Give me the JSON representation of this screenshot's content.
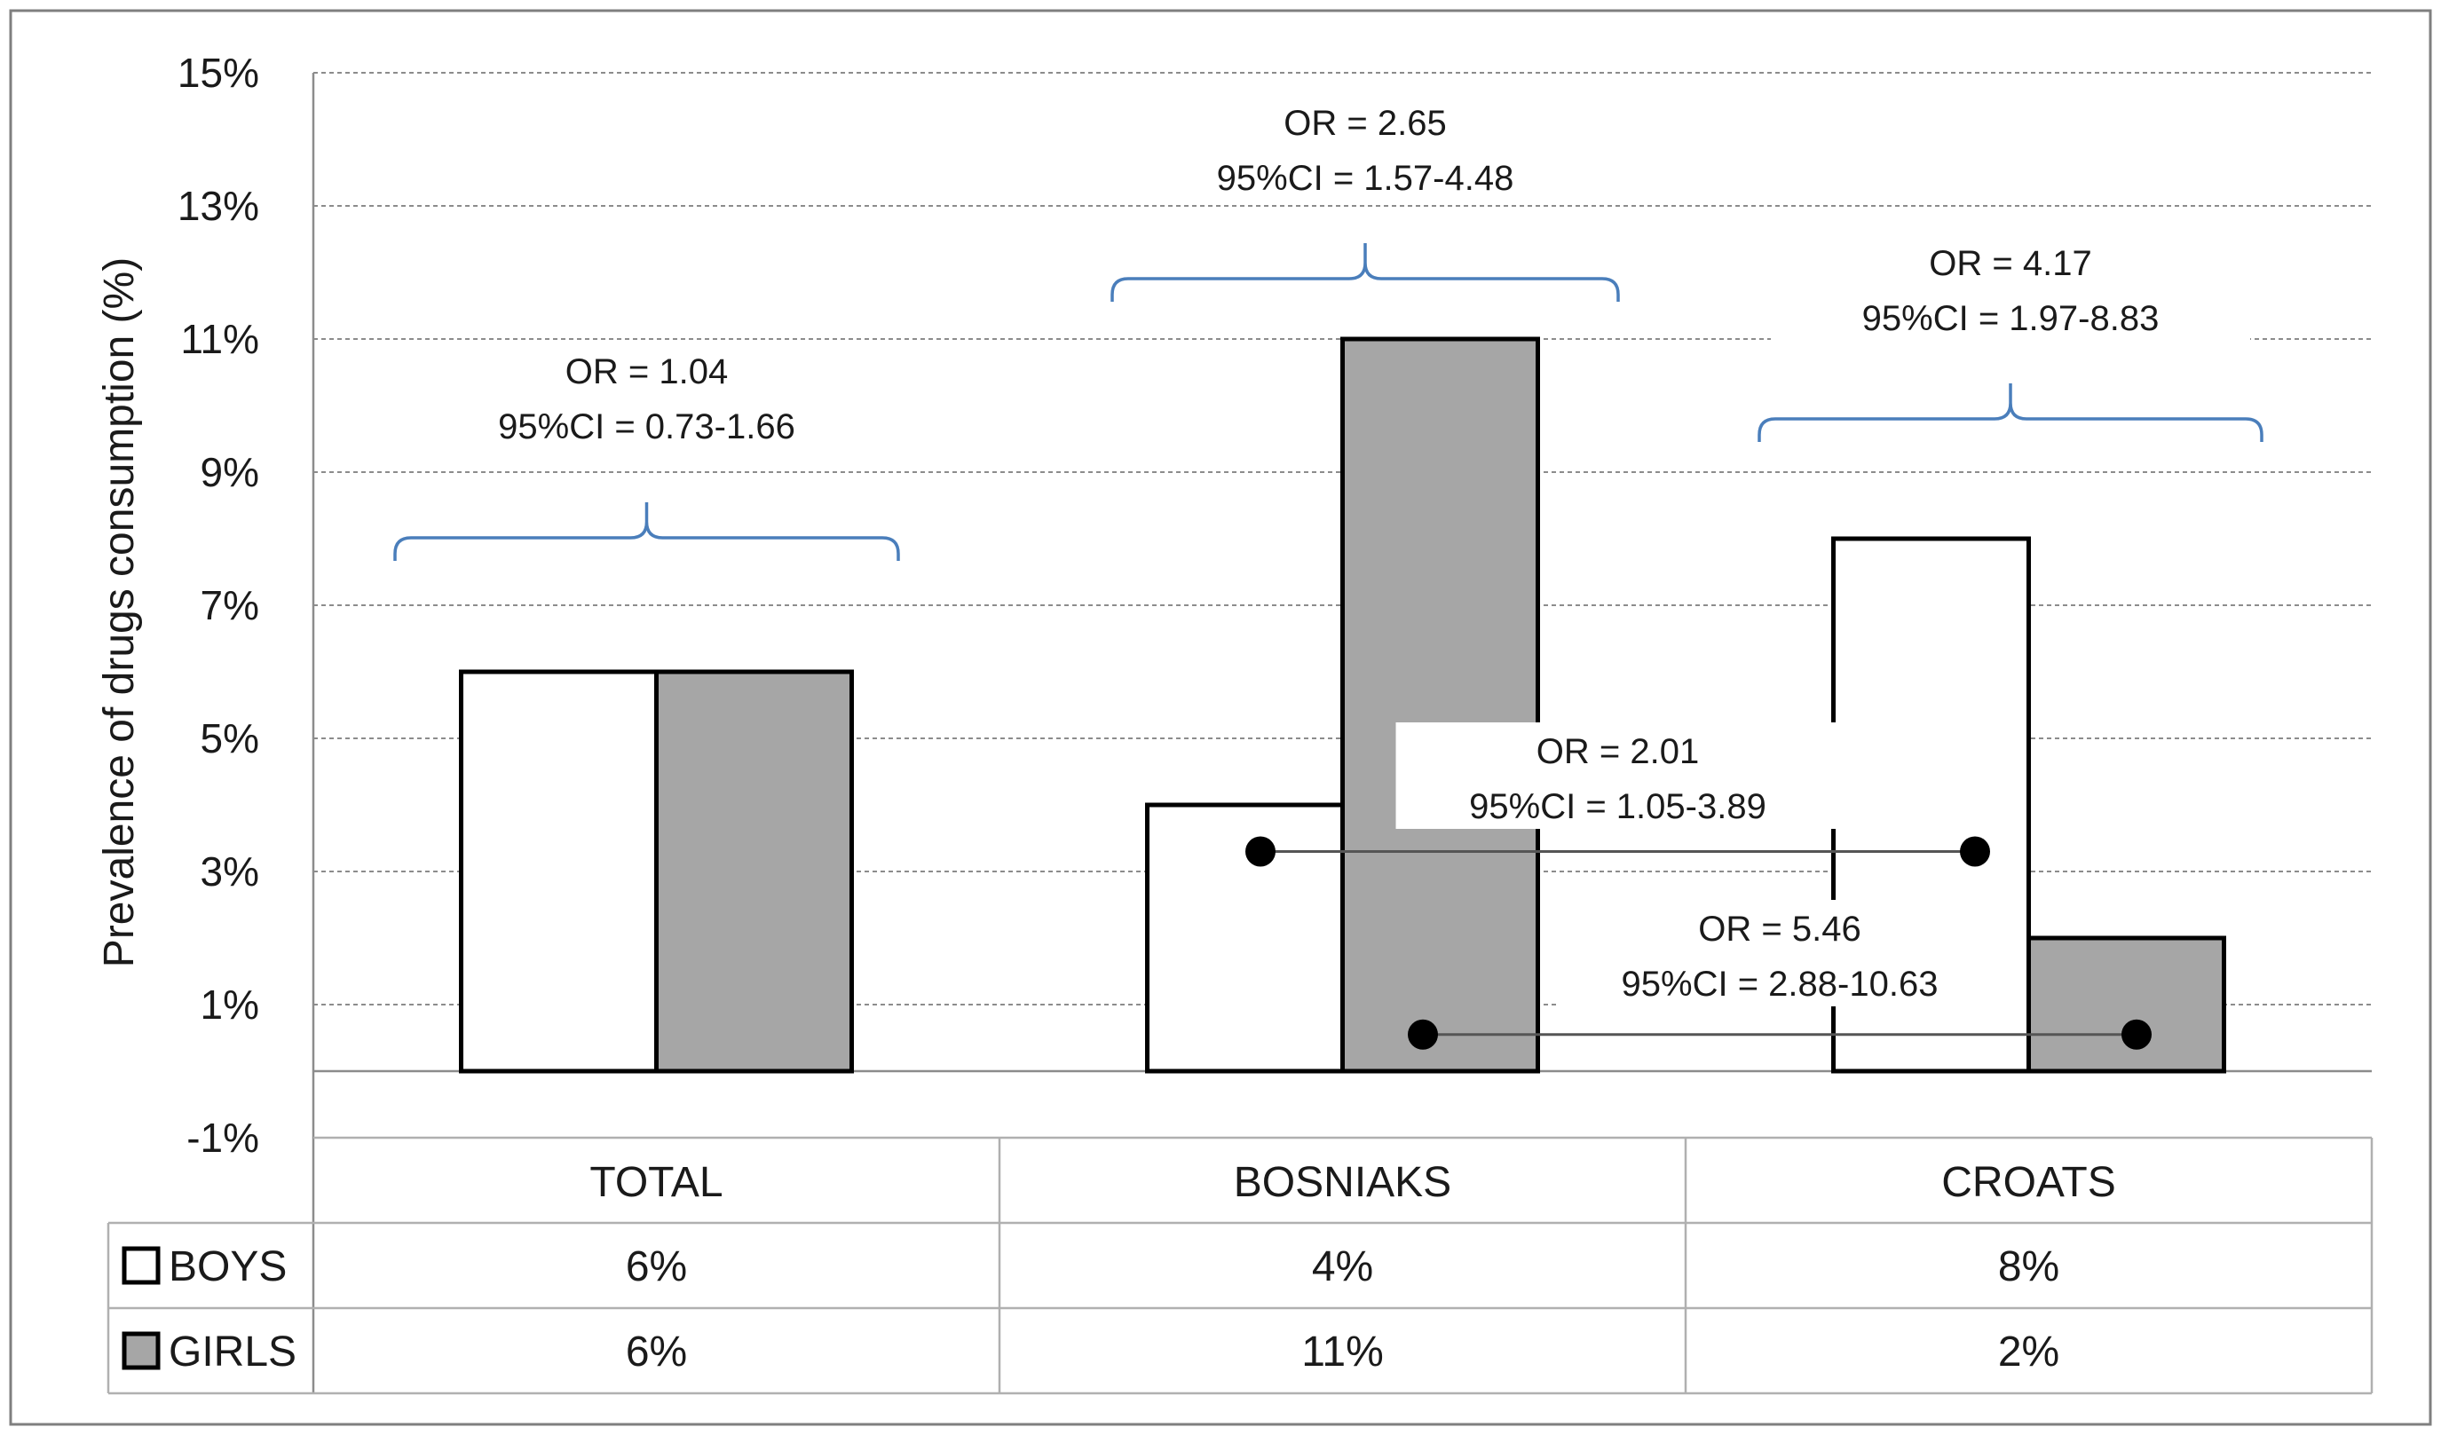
{
  "chart_data": {
    "type": "bar",
    "title": "",
    "xlabel": "",
    "ylabel": "Prevalence of drugs consumption (%)",
    "ylim": [
      -1,
      15
    ],
    "yticks": [
      15,
      13,
      11,
      9,
      7,
      5,
      3,
      1,
      -1
    ],
    "ytick_labels": [
      "15%",
      "13%",
      "11%",
      "9%",
      "7%",
      "5%",
      "3%",
      "1%",
      "-1%"
    ],
    "grid": true,
    "categories": [
      "TOTAL",
      "BOSNIAKS",
      "CROATS"
    ],
    "series": [
      {
        "name": "BOYS",
        "values": [
          6,
          4,
          8
        ],
        "value_labels": [
          "6%",
          "4%",
          "8%"
        ],
        "color": "#ffffff"
      },
      {
        "name": "GIRLS",
        "values": [
          6,
          11,
          2
        ],
        "value_labels": [
          "6%",
          "11%",
          "2%"
        ],
        "color": "#a6a6a6"
      }
    ],
    "annotations": [
      {
        "or": "OR = 1.04",
        "ci": "95%CI = 0.73-1.66",
        "category": "TOTAL",
        "compares": "boys vs girls"
      },
      {
        "or": "OR = 2.65",
        "ci": "95%CI = 1.57-4.48",
        "category": "BOSNIAKS",
        "compares": "boys vs girls"
      },
      {
        "or": "OR = 4.17",
        "ci": "95%CI = 1.97-8.83",
        "category": "CROATS",
        "compares": "boys vs girls"
      }
    ],
    "connectors": [
      {
        "or": "OR =  2.01",
        "ci": "95%CI =  1.05-3.89",
        "from": "BOSNIAKS BOYS",
        "to": "CROATS BOYS",
        "level": 3.3
      },
      {
        "or": "OR = 5.46",
        "ci": "95%CI = 2.88-10.63",
        "from": "BOSNIAKS GIRLS",
        "to": "CROATS GIRLS",
        "level": 0.55
      }
    ]
  }
}
